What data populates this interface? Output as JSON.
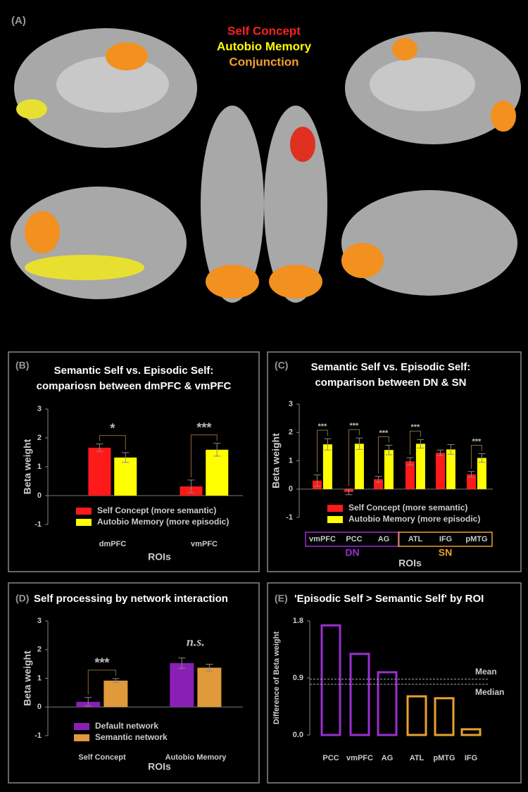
{
  "panel_a": {
    "label": "(A)",
    "legend": [
      {
        "name": "Self Concept",
        "color": "#ff2020"
      },
      {
        "name": "Autobio Memory",
        "color": "#ffff00"
      },
      {
        "name": "Conjunction",
        "color": "#f0a030"
      }
    ]
  },
  "chart_data": [
    {
      "type": "bar",
      "label": "(B)",
      "title": [
        "Semantic Self vs. Episodic Self:",
        "compariosn between dmPFC & vmPFC"
      ],
      "xlabel": "ROIs",
      "ylabel": "Beta weight",
      "categories": [
        "dmPFC",
        "vmPFC"
      ],
      "series": [
        {
          "name": "Self Concept (more semantic)",
          "color": "#ff1a1a",
          "values": [
            1.66,
            0.32
          ],
          "errors": [
            0.13,
            0.22
          ]
        },
        {
          "name": "Autobio Memory (more episodic)",
          "color": "#ffff00",
          "values": [
            1.32,
            1.59
          ],
          "errors": [
            0.17,
            0.22
          ]
        }
      ],
      "significance": [
        "*",
        "***"
      ],
      "ylim": [
        -1,
        3
      ],
      "yticks": [
        -1,
        0,
        1,
        2,
        3
      ]
    },
    {
      "type": "bar",
      "label": "(C)",
      "title": [
        "Semantic Self vs. Episodic Self:",
        "comparison between DN & SN"
      ],
      "xlabel": "ROIs",
      "ylabel": "Beta weight",
      "categories": [
        "vmPFC",
        "PCC",
        "AG",
        "ATL",
        "IFG",
        "pMTG"
      ],
      "series": [
        {
          "name": "Self Concept (more semantic)",
          "color": "#ff1a1a",
          "values": [
            0.3,
            -0.1,
            0.35,
            0.98,
            1.28,
            0.52
          ],
          "errors": [
            0.2,
            0.1,
            0.1,
            0.13,
            0.1,
            0.1
          ]
        },
        {
          "name": "Autobio Memory (more episodic)",
          "color": "#ffff00",
          "values": [
            1.58,
            1.6,
            1.38,
            1.6,
            1.4,
            1.1
          ],
          "errors": [
            0.2,
            0.2,
            0.17,
            0.15,
            0.17,
            0.15
          ]
        }
      ],
      "significance": [
        "***",
        "***",
        "***",
        "***",
        null,
        "***"
      ],
      "groups": [
        {
          "name": "DN",
          "color": "#9a2fd0",
          "members": [
            "vmPFC",
            "PCC",
            "AG"
          ]
        },
        {
          "name": "SN",
          "color": "#e8a030",
          "members": [
            "ATL",
            "IFG",
            "pMTG"
          ]
        }
      ],
      "ylim": [
        -1,
        3
      ],
      "yticks": [
        -1,
        0,
        1,
        2,
        3
      ]
    },
    {
      "type": "bar",
      "label": "(D)",
      "title": [
        "Self processing by network interaction"
      ],
      "xlabel": "ROIs",
      "ylabel": "Beta weight",
      "categories": [
        "Self Concept",
        "Autobio Memory"
      ],
      "series": [
        {
          "name": "Default network",
          "color": "#8a1fb5",
          "values": [
            0.18,
            1.53
          ],
          "errors": [
            0.15,
            0.18
          ]
        },
        {
          "name": "Semantic network",
          "color": "#e09a3a",
          "values": [
            0.92,
            1.37
          ],
          "errors": [
            0.07,
            0.12
          ]
        }
      ],
      "significance": [
        "***",
        "n.s."
      ],
      "ylim": [
        -1,
        3
      ],
      "yticks": [
        -1,
        0,
        1,
        2,
        3
      ]
    },
    {
      "type": "outline-bar",
      "label": "(E)",
      "title": [
        "'Episodic Self > Semantic Self' by ROI"
      ],
      "ylabel": "Difference of Beta weight",
      "categories": [
        "PCC",
        "vmPFC",
        "AG",
        "ATL",
        "pMTG",
        "IFG"
      ],
      "values": [
        1.73,
        1.28,
        0.99,
        0.61,
        0.58,
        0.09
      ],
      "colors": [
        "#9a2fd0",
        "#9a2fd0",
        "#9a2fd0",
        "#e8a030",
        "#e8a030",
        "#e8a030"
      ],
      "reference_lines": [
        {
          "name": "Mean",
          "value": 0.88
        },
        {
          "name": "Median",
          "value": 0.8
        }
      ],
      "ylim": [
        0,
        1.8
      ],
      "yticks": [
        {
          "value": 0,
          "label": "0.0"
        },
        0.9,
        1.8
      ]
    }
  ]
}
